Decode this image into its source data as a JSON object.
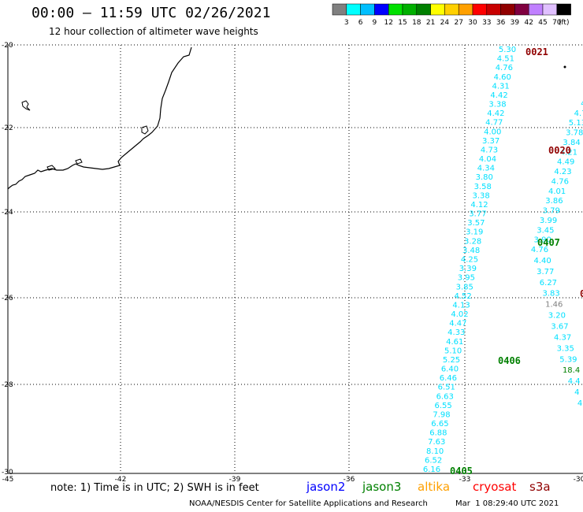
{
  "header": {
    "title": "00:00 – 11:59 UTC 02/26/2021",
    "subtitle": "12 hour collection of altimeter wave heights"
  },
  "colorbar": {
    "unit": "(ft)",
    "labels": [
      "3",
      "6",
      "9",
      "12",
      "15",
      "18",
      "21",
      "24",
      "27",
      "30",
      "33",
      "36",
      "39",
      "42",
      "45",
      "70"
    ],
    "colors": [
      "#808080",
      "#00ffff",
      "#00bfff",
      "#0000ff",
      "#00e000",
      "#00b000",
      "#008000",
      "#ffff00",
      "#ffd000",
      "#ffa000",
      "#ff0000",
      "#c80000",
      "#900000",
      "#800040",
      "#c080ff",
      "#e0c0ff",
      "#000000"
    ]
  },
  "map": {
    "lat_labels": [
      "-20",
      "-22",
      "-24",
      "-26",
      "-28",
      "-30"
    ],
    "lon_labels": [
      "-45",
      "-42",
      "-39",
      "-36",
      "-33",
      "-30"
    ]
  },
  "tracks": {
    "left_swh": [
      "5.30",
      "4.51",
      "4.76",
      "4.60",
      "4.31",
      "4.42",
      "3.38",
      "4.42",
      "4.77",
      "4.00",
      "3.37",
      "4.73",
      "4.04",
      "4.34",
      "3.80",
      "3.58",
      "3.38",
      "4.12",
      "3.77",
      "3.57",
      "3.19",
      "3.28",
      "3.48",
      "4.25",
      "3.39",
      "3.95",
      "3.85",
      "4.52",
      "4.13",
      "4.02",
      "4.47",
      "4.33",
      "4.61",
      "5.10",
      "5.25",
      "6.40",
      "6.46",
      "6.51",
      "6.63",
      "6.55",
      "7.98",
      "6.65",
      "6.88",
      "7.63",
      "8.10",
      "6.52",
      "6.16"
    ],
    "left_color": "#00e0ff",
    "right_swh": [
      "4",
      "4",
      "4.7",
      "5.13",
      "3.78",
      "3.84",
      "4.21",
      "4.49",
      "4.23",
      "4.76",
      "4.01",
      "3.86",
      "3.79",
      "3.99",
      "3.45",
      "3.90",
      "4.76",
      "4.40",
      "3.77",
      "6.27",
      "3.83",
      "1.46",
      "3.20",
      "3.67",
      "4.37",
      "3.35",
      "5.39",
      "18.4",
      "4.4",
      "4",
      "4"
    ],
    "right_colors": {
      "default": "#00e0ff",
      "3.83": "#00e0ff",
      "1.46": "#808080",
      "18.4": "#008000",
      "5.39": "#00e0ff"
    },
    "passes": [
      {
        "label": "0021",
        "color": "#900000"
      },
      {
        "label": "0020",
        "color": "#900000"
      },
      {
        "label": "0407",
        "color": "#008000"
      },
      {
        "label": "0406",
        "color": "#008000"
      },
      {
        "label": "0405",
        "color": "#008000"
      },
      {
        "label": "0",
        "color": "#900000"
      }
    ]
  },
  "footer": {
    "note": "note: 1) Time is in UTC; 2) SWH is in feet",
    "satellites": [
      {
        "name": "jason2",
        "color": "#0000ff"
      },
      {
        "name": "jason3",
        "color": "#008000"
      },
      {
        "name": "altika",
        "color": "#ffa000"
      },
      {
        "name": "cryosat",
        "color": "#ff0000"
      },
      {
        "name": "s3a",
        "color": "#900000"
      }
    ],
    "credit": "NOAA/NESDIS Center for Satellite Applications and Research",
    "timestamp": "Mar  1 08:29:40 UTC 2021"
  }
}
